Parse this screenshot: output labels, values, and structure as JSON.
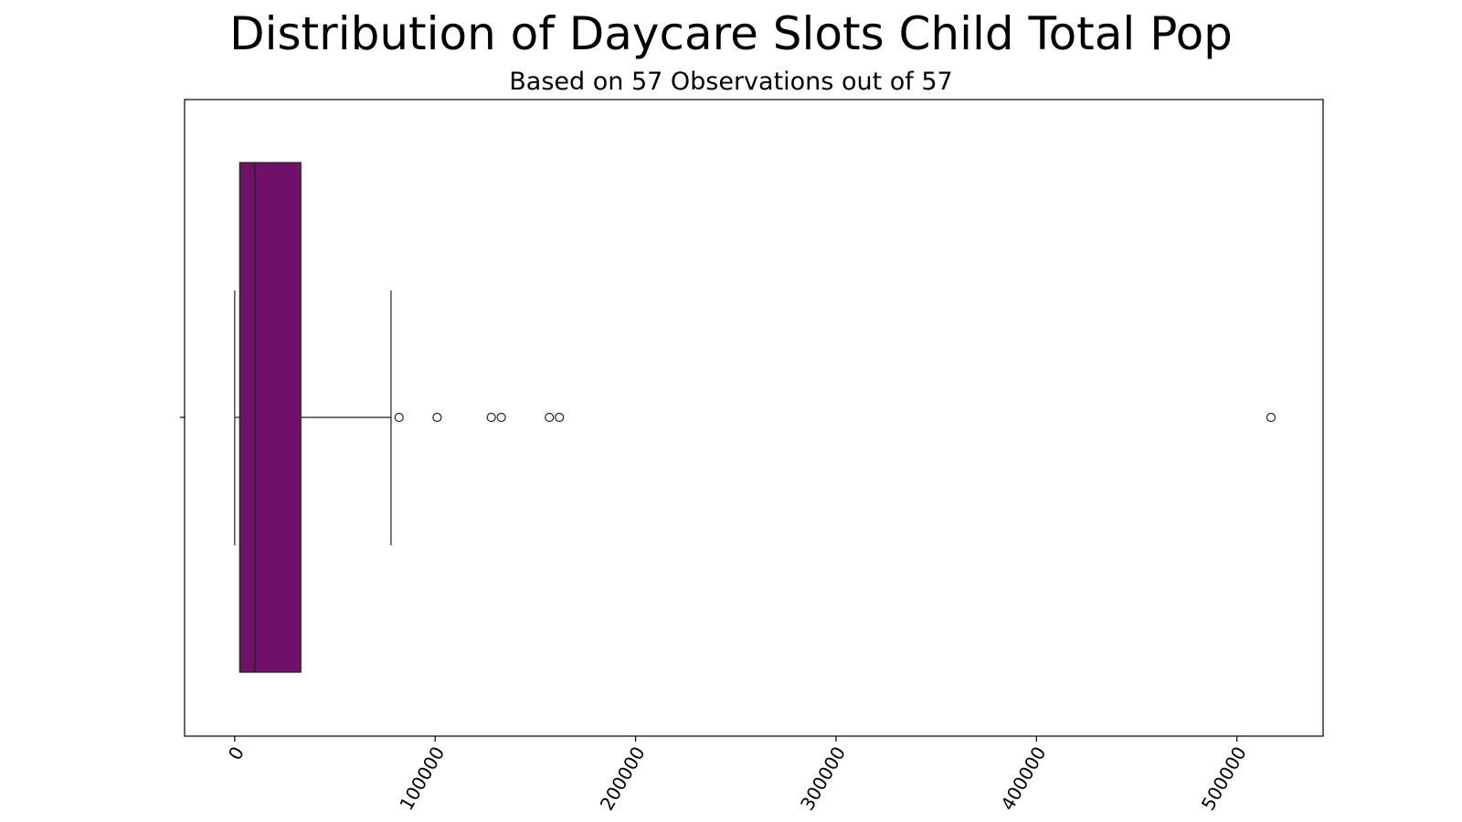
{
  "chart_data": {
    "type": "box",
    "orientation": "horizontal",
    "title": "Distribution of Daycare Slots Child Total Pop",
    "subtitle": "Based on 57 Observations out of 57",
    "xlabel": "",
    "ylabel": "",
    "xlim": [
      -25000,
      543000
    ],
    "x_ticks": [
      0,
      100000,
      200000,
      300000,
      400000,
      500000
    ],
    "x_tick_labels": [
      "0",
      "100000",
      "200000",
      "300000",
      "400000",
      "500000"
    ],
    "x_tick_rotation": 60,
    "box": {
      "whisker_low": 0,
      "q1": 2500,
      "median": 10000,
      "q3": 33000,
      "whisker_high": 78000
    },
    "outliers": [
      82000,
      101000,
      128000,
      133000,
      157000,
      162000,
      517000
    ],
    "grid": false,
    "color": "#701068"
  }
}
